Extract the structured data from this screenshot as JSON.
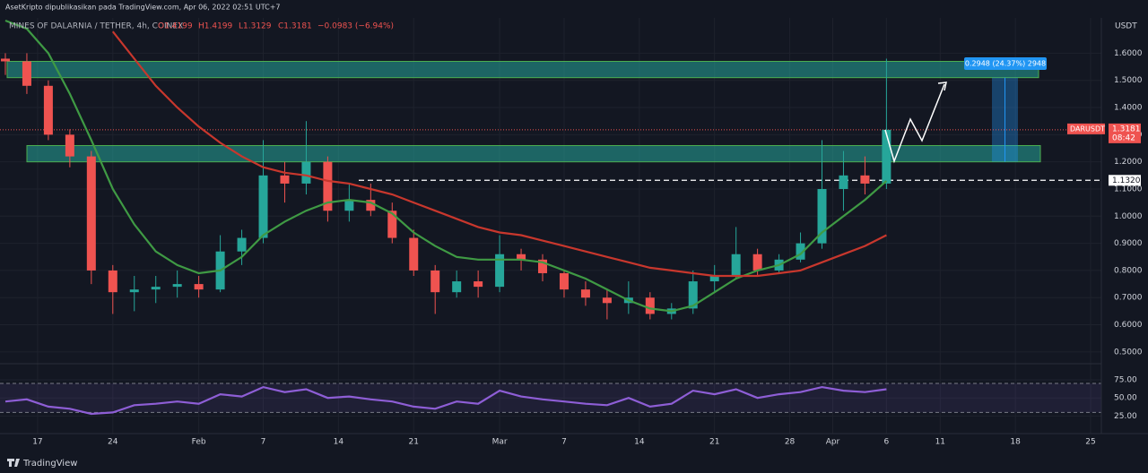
{
  "header": {
    "publisher": "AsetKripto dipublikasikan pada TradingView.com, Apr 06, 2022 02:51 UTC+7"
  },
  "footer": {
    "brand": "TradingView"
  },
  "chart_data": [
    {
      "type": "candlestick",
      "title": "MINES OF DALARNIA / TETHER, 4h, COINEX",
      "ohlc": [
        "O1.4199",
        "H1.4199",
        "L1.3129",
        "C1.3181"
      ],
      "change": "−0.0983 (−6.94%)",
      "unit": "USDT",
      "up_color": "#26a69a",
      "down_color": "#ef5350",
      "x": [
        "2022-01-14",
        "2022-01-16",
        "2022-01-18",
        "2022-01-20",
        "2022-01-22",
        "2022-01-24",
        "2022-01-26",
        "2022-01-28",
        "2022-01-30",
        "2022-02-01",
        "2022-02-03",
        "2022-02-05",
        "2022-02-07",
        "2022-02-09",
        "2022-02-11",
        "2022-02-13",
        "2022-02-15",
        "2022-02-17",
        "2022-02-19",
        "2022-02-21",
        "2022-02-23",
        "2022-02-25",
        "2022-02-27",
        "2022-03-01",
        "2022-03-03",
        "2022-03-05",
        "2022-03-07",
        "2022-03-09",
        "2022-03-11",
        "2022-03-13",
        "2022-03-15",
        "2022-03-17",
        "2022-03-19",
        "2022-03-21",
        "2022-03-23",
        "2022-03-25",
        "2022-03-27",
        "2022-03-29",
        "2022-03-31",
        "2022-04-02",
        "2022-04-04",
        "2022-04-06"
      ],
      "open": [
        1.58,
        1.57,
        1.48,
        1.3,
        1.22,
        0.8,
        0.72,
        0.73,
        0.74,
        0.75,
        0.73,
        0.87,
        0.92,
        1.15,
        1.12,
        1.2,
        1.02,
        1.06,
        1.02,
        0.92,
        0.8,
        0.72,
        0.76,
        0.74,
        0.86,
        0.84,
        0.79,
        0.73,
        0.7,
        0.68,
        0.7,
        0.64,
        0.66,
        0.76,
        0.78,
        0.86,
        0.8,
        0.84,
        0.9,
        1.1,
        1.15,
        1.12
      ],
      "high": [
        1.6,
        1.6,
        1.5,
        1.32,
        1.24,
        0.82,
        0.78,
        0.78,
        0.8,
        0.78,
        0.93,
        0.95,
        1.28,
        1.2,
        1.35,
        1.22,
        1.12,
        1.12,
        1.05,
        0.95,
        0.82,
        0.8,
        0.8,
        0.93,
        0.88,
        0.86,
        0.8,
        0.76,
        0.73,
        0.76,
        0.72,
        0.68,
        0.8,
        0.82,
        0.96,
        0.88,
        0.86,
        0.94,
        1.28,
        1.24,
        1.22,
        1.58
      ],
      "low": [
        1.52,
        1.45,
        1.28,
        1.18,
        0.75,
        0.64,
        0.65,
        0.68,
        0.7,
        0.7,
        0.72,
        0.82,
        0.9,
        1.05,
        1.08,
        0.98,
        0.98,
        1.0,
        0.9,
        0.78,
        0.64,
        0.7,
        0.7,
        0.72,
        0.8,
        0.76,
        0.7,
        0.67,
        0.62,
        0.64,
        0.62,
        0.62,
        0.64,
        0.72,
        0.77,
        0.78,
        0.79,
        0.83,
        0.88,
        1.02,
        1.08,
        1.1
      ],
      "close": [
        1.57,
        1.48,
        1.3,
        1.22,
        0.8,
        0.72,
        0.73,
        0.74,
        0.75,
        0.73,
        0.87,
        0.92,
        1.15,
        1.12,
        1.2,
        1.02,
        1.06,
        1.02,
        0.92,
        0.8,
        0.72,
        0.76,
        0.74,
        0.86,
        0.84,
        0.79,
        0.73,
        0.7,
        0.68,
        0.7,
        0.64,
        0.66,
        0.76,
        0.78,
        0.86,
        0.8,
        0.84,
        0.9,
        1.1,
        1.15,
        1.12,
        1.3181
      ],
      "series": [
        {
          "color": "#3f9a44",
          "values": [
            1.72,
            1.69,
            1.6,
            1.45,
            1.28,
            1.1,
            0.97,
            0.87,
            0.82,
            0.79,
            0.8,
            0.85,
            0.93,
            0.98,
            1.02,
            1.05,
            1.06,
            1.05,
            1.01,
            0.94,
            0.89,
            0.85,
            0.84,
            0.84,
            0.84,
            0.83,
            0.8,
            0.77,
            0.73,
            0.69,
            0.66,
            0.65,
            0.67,
            0.72,
            0.77,
            0.8,
            0.82,
            0.86,
            0.94,
            1.0,
            1.06,
            1.13
          ]
        },
        {
          "color": "#c8372d",
          "values": [
            null,
            null,
            null,
            null,
            null,
            1.68,
            1.58,
            1.48,
            1.4,
            1.33,
            1.27,
            1.22,
            1.18,
            1.16,
            1.15,
            1.13,
            1.12,
            1.1,
            1.08,
            1.05,
            1.02,
            0.99,
            0.96,
            0.94,
            0.93,
            0.91,
            0.89,
            0.87,
            0.85,
            0.83,
            0.81,
            0.8,
            0.79,
            0.78,
            0.78,
            0.78,
            0.79,
            0.8,
            0.83,
            0.86,
            0.89,
            0.93
          ]
        }
      ],
      "zones": [
        {
          "low": 1.51,
          "high": 1.57
        },
        {
          "low": 1.2,
          "high": 1.26
        }
      ],
      "measure": {
        "low": 1.2,
        "high": 1.51,
        "label": "0.2948 (24.37%) 2948"
      },
      "level": {
        "value": 1.132,
        "label": "1.1320"
      },
      "last_price": {
        "value": 1.3181,
        "label": "1.3181"
      },
      "symbol_tag": "DARUSDT",
      "countdown": "08:42",
      "xlim": [
        "2022-01-13",
        "2022-04-26"
      ],
      "ylim": [
        0.46,
        1.73
      ],
      "yticks": [
        {
          "value": 1.6,
          "label": "1.6000"
        },
        {
          "value": 1.5,
          "label": "1.5000"
        },
        {
          "value": 1.4,
          "label": "1.4000"
        },
        {
          "value": 1.3,
          "label": "1.3000"
        },
        {
          "value": 1.2,
          "label": "1.2000"
        },
        {
          "value": 1.1,
          "label": "1.1000"
        },
        {
          "value": 1.0,
          "label": "1.0000"
        },
        {
          "value": 0.9,
          "label": "0.9000"
        },
        {
          "value": 0.8,
          "label": "0.8000"
        },
        {
          "value": 0.7,
          "label": "0.7000"
        },
        {
          "value": 0.6,
          "label": "0.6000"
        },
        {
          "value": 0.5,
          "label": "0.5000"
        }
      ],
      "grid": true
    },
    {
      "type": "line",
      "x": [
        "2022-01-14",
        "2022-01-16",
        "2022-01-18",
        "2022-01-20",
        "2022-01-22",
        "2022-01-24",
        "2022-01-26",
        "2022-01-28",
        "2022-01-30",
        "2022-02-01",
        "2022-02-03",
        "2022-02-05",
        "2022-02-07",
        "2022-02-09",
        "2022-02-11",
        "2022-02-13",
        "2022-02-15",
        "2022-02-17",
        "2022-02-19",
        "2022-02-21",
        "2022-02-23",
        "2022-02-25",
        "2022-02-27",
        "2022-03-01",
        "2022-03-03",
        "2022-03-05",
        "2022-03-07",
        "2022-03-09",
        "2022-03-11",
        "2022-03-13",
        "2022-03-15",
        "2022-03-17",
        "2022-03-19",
        "2022-03-21",
        "2022-03-23",
        "2022-03-25",
        "2022-03-27",
        "2022-03-29",
        "2022-03-31",
        "2022-04-02",
        "2022-04-04",
        "2022-04-06"
      ],
      "series": [
        {
          "color": "#8e5ed6",
          "values": [
            45,
            48,
            38,
            35,
            28,
            30,
            40,
            42,
            45,
            42,
            55,
            52,
            65,
            58,
            62,
            50,
            52,
            48,
            45,
            38,
            35,
            45,
            42,
            60,
            52,
            48,
            45,
            42,
            40,
            50,
            38,
            42,
            60,
            55,
            62,
            50,
            55,
            58,
            65,
            60,
            58,
            62
          ]
        }
      ],
      "band": [
        30,
        70
      ],
      "xlim": [
        "2022-01-13",
        "2022-04-26"
      ],
      "ylim": [
        2,
        96
      ],
      "yticks": [
        {
          "value": 75,
          "label": "75.00"
        },
        {
          "value": 50,
          "label": "50.00"
        },
        {
          "value": 25,
          "label": "25.00"
        }
      ],
      "xticks": [
        {
          "value": "2022-01-17",
          "label": "17"
        },
        {
          "value": "2022-01-24",
          "label": "24"
        },
        {
          "value": "2022-02-01",
          "label": "Feb"
        },
        {
          "value": "2022-02-07",
          "label": "7"
        },
        {
          "value": "2022-02-14",
          "label": "14"
        },
        {
          "value": "2022-02-21",
          "label": "21"
        },
        {
          "value": "2022-03-01",
          "label": "Mar"
        },
        {
          "value": "2022-03-07",
          "label": "7"
        },
        {
          "value": "2022-03-14",
          "label": "14"
        },
        {
          "value": "2022-03-21",
          "label": "21"
        },
        {
          "value": "2022-03-28",
          "label": "28"
        },
        {
          "value": "2022-04-01",
          "label": "Apr"
        },
        {
          "value": "2022-04-06",
          "label": "6"
        },
        {
          "value": "2022-04-11",
          "label": "11"
        },
        {
          "value": "2022-04-18",
          "label": "18"
        },
        {
          "value": "2022-04-25",
          "label": "25"
        }
      ],
      "grid": true
    }
  ]
}
